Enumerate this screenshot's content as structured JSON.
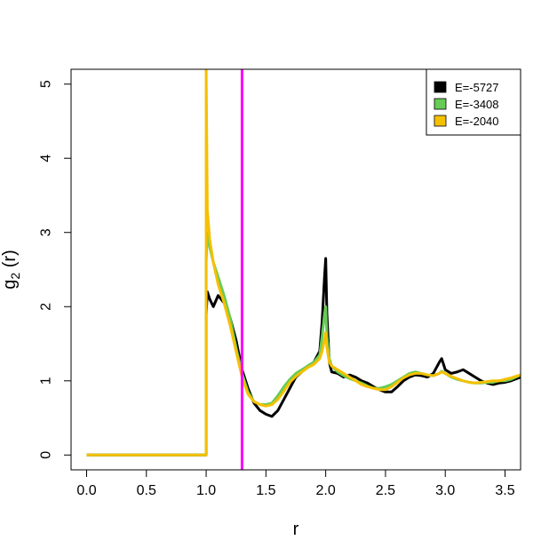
{
  "chart_data": {
    "type": "line",
    "title": "",
    "xlabel": "r",
    "ylabel": "g₂ (r)",
    "ylabel_main": "g",
    "ylabel_sub": "2",
    "ylabel_rest": " (r)",
    "xlim": [
      -0.13,
      3.63
    ],
    "ylim": [
      -0.2,
      5.2
    ],
    "x_ticks": [
      0.0,
      0.5,
      1.0,
      1.5,
      2.0,
      2.5,
      3.0,
      3.5
    ],
    "x_tick_labels": [
      "0.0",
      "0.5",
      "1.0",
      "1.5",
      "2.0",
      "2.5",
      "3.0",
      "3.5"
    ],
    "y_ticks": [
      0,
      1,
      2,
      3,
      4,
      5
    ],
    "y_tick_labels": [
      "0",
      "1",
      "2",
      "3",
      "4",
      "5"
    ],
    "grid": false,
    "legend_position": "top-right",
    "vline": {
      "x": 1.3,
      "color": "#FF00FF"
    },
    "series": [
      {
        "name": "E=-5727",
        "color": "#000000",
        "x": [
          0.0,
          0.99,
          1.0,
          1.0,
          1.01,
          1.03,
          1.06,
          1.1,
          1.15,
          1.2,
          1.25,
          1.3,
          1.35,
          1.4,
          1.45,
          1.5,
          1.55,
          1.6,
          1.65,
          1.7,
          1.75,
          1.8,
          1.85,
          1.9,
          1.95,
          1.97,
          1.99,
          2.0,
          2.01,
          2.03,
          2.05,
          2.1,
          2.15,
          2.2,
          2.25,
          2.3,
          2.35,
          2.4,
          2.45,
          2.5,
          2.55,
          2.6,
          2.65,
          2.7,
          2.75,
          2.8,
          2.85,
          2.9,
          2.95,
          2.97,
          3.0,
          3.05,
          3.1,
          3.15,
          3.2,
          3.25,
          3.3,
          3.35,
          3.4,
          3.45,
          3.5,
          3.55,
          3.63
        ],
        "y": [
          0,
          0,
          0,
          1.9,
          2.2,
          2.1,
          2.0,
          2.15,
          2.05,
          1.85,
          1.55,
          1.15,
          0.9,
          0.7,
          0.6,
          0.55,
          0.52,
          0.6,
          0.75,
          0.9,
          1.05,
          1.12,
          1.2,
          1.25,
          1.4,
          1.8,
          2.4,
          2.65,
          1.9,
          1.25,
          1.12,
          1.1,
          1.05,
          1.08,
          1.05,
          1.0,
          0.97,
          0.92,
          0.88,
          0.85,
          0.85,
          0.92,
          1.0,
          1.05,
          1.08,
          1.07,
          1.05,
          1.1,
          1.25,
          1.3,
          1.15,
          1.1,
          1.12,
          1.15,
          1.1,
          1.05,
          1.0,
          0.97,
          0.95,
          0.97,
          0.98,
          1.0,
          1.05
        ]
      },
      {
        "name": "E=-3408",
        "color": "#66CC55",
        "x": [
          0.0,
          0.99,
          1.0,
          1.0,
          1.01,
          1.03,
          1.06,
          1.1,
          1.15,
          1.2,
          1.25,
          1.3,
          1.35,
          1.4,
          1.45,
          1.5,
          1.55,
          1.6,
          1.65,
          1.7,
          1.75,
          1.8,
          1.85,
          1.9,
          1.95,
          1.97,
          1.99,
          2.0,
          2.01,
          2.03,
          2.05,
          2.1,
          2.15,
          2.2,
          2.25,
          2.3,
          2.35,
          2.4,
          2.45,
          2.5,
          2.55,
          2.6,
          2.65,
          2.7,
          2.75,
          2.8,
          2.85,
          2.9,
          2.95,
          2.97,
          3.0,
          3.05,
          3.1,
          3.15,
          3.2,
          3.25,
          3.3,
          3.35,
          3.4,
          3.45,
          3.5,
          3.55,
          3.63
        ],
        "y": [
          0,
          0,
          0,
          2.6,
          3.0,
          2.8,
          2.6,
          2.4,
          2.15,
          1.85,
          1.45,
          1.1,
          0.85,
          0.72,
          0.68,
          0.68,
          0.7,
          0.8,
          0.92,
          1.02,
          1.1,
          1.15,
          1.2,
          1.25,
          1.35,
          1.6,
          1.9,
          2.0,
          1.6,
          1.3,
          1.2,
          1.12,
          1.07,
          1.03,
          1.0,
          0.97,
          0.93,
          0.9,
          0.9,
          0.92,
          0.95,
          1.0,
          1.05,
          1.1,
          1.12,
          1.1,
          1.08,
          1.07,
          1.1,
          1.13,
          1.1,
          1.05,
          1.02,
          1.0,
          0.98,
          0.97,
          0.97,
          0.98,
          0.98,
          1.0,
          1.0,
          1.02,
          1.08
        ]
      },
      {
        "name": "E=-2040",
        "color": "#F5C000",
        "x": [
          0.0,
          0.99,
          1.0,
          1.0,
          1.01,
          1.03,
          1.06,
          1.1,
          1.15,
          1.2,
          1.25,
          1.3,
          1.35,
          1.4,
          1.45,
          1.5,
          1.55,
          1.6,
          1.65,
          1.7,
          1.75,
          1.8,
          1.85,
          1.9,
          1.95,
          1.97,
          1.99,
          2.0,
          2.01,
          2.03,
          2.05,
          2.1,
          2.15,
          2.2,
          2.25,
          2.3,
          2.35,
          2.4,
          2.45,
          2.5,
          2.55,
          2.6,
          2.65,
          2.7,
          2.75,
          2.8,
          2.85,
          2.9,
          2.95,
          2.97,
          3.0,
          3.05,
          3.1,
          3.15,
          3.2,
          3.25,
          3.3,
          3.35,
          3.4,
          3.45,
          3.5,
          3.55,
          3.63
        ],
        "y": [
          0,
          0,
          0,
          5.2,
          3.3,
          2.9,
          2.6,
          2.3,
          2.05,
          1.75,
          1.4,
          1.05,
          0.82,
          0.72,
          0.68,
          0.66,
          0.68,
          0.75,
          0.86,
          0.98,
          1.06,
          1.12,
          1.18,
          1.22,
          1.3,
          1.4,
          1.55,
          1.65,
          1.45,
          1.25,
          1.2,
          1.15,
          1.1,
          1.05,
          1.0,
          0.95,
          0.92,
          0.9,
          0.88,
          0.88,
          0.92,
          0.98,
          1.04,
          1.08,
          1.1,
          1.1,
          1.08,
          1.07,
          1.1,
          1.12,
          1.1,
          1.06,
          1.03,
          1.0,
          0.98,
          0.97,
          0.98,
          0.99,
          1.0,
          1.0,
          1.02,
          1.04,
          1.08
        ]
      }
    ]
  }
}
